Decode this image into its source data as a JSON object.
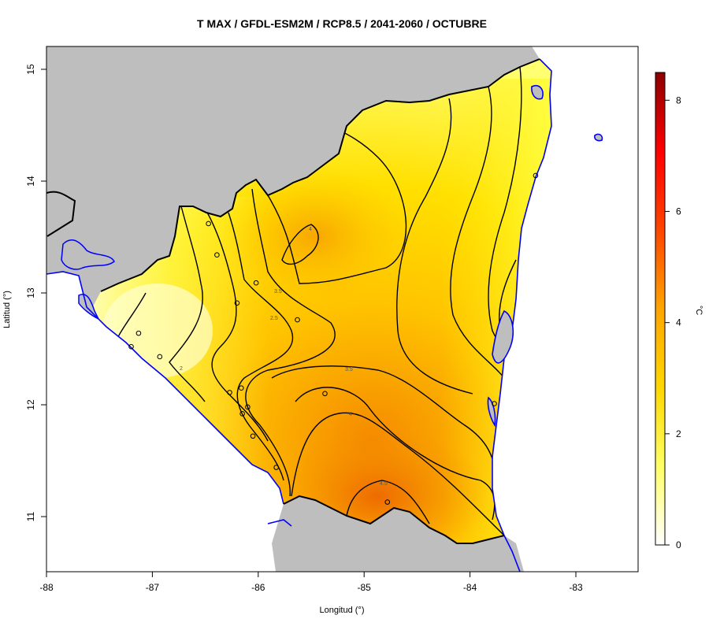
{
  "title": "T MAX / GFDL-ESM2M / RCP8.5 / 2041-2060 / OCTUBRE",
  "x_axis": {
    "label": "Longitud (°)",
    "ticks": [
      "-88",
      "-87",
      "-86",
      "-85",
      "-84",
      "-83"
    ]
  },
  "y_axis": {
    "label": "Latitud (°)",
    "ticks": [
      "15",
      "14",
      "13",
      "12",
      "11"
    ]
  },
  "colorbar": {
    "unit": "°C",
    "ticks": [
      "0",
      "2",
      "4",
      "6",
      "8"
    ],
    "range": [
      0,
      8.5
    ],
    "colors": [
      "#ffffff",
      "#ffff66",
      "#ffd700",
      "#ffa500",
      "#ff4500",
      "#ff0000",
      "#8b0000"
    ]
  },
  "colors": {
    "land_outside": "#bebebe",
    "water": "#ffffff",
    "coastline": "#0000ff",
    "border": "#000000",
    "low_anomaly": "#ffff99",
    "mid_anomaly": "#ffd000",
    "high_anomaly": "#f08000"
  },
  "contour_labels": [
    "4",
    "3.5",
    "2.5",
    "2",
    "3.5",
    "4",
    "4.5"
  ],
  "chart_data": {
    "type": "heatmap",
    "variable": "T MAX anomaly",
    "unit": "°C",
    "xlim": [
      -88,
      -82.4
    ],
    "ylim": [
      10.5,
      15.2
    ],
    "contour_levels": [
      2,
      2.5,
      3,
      3.5,
      4,
      4.5
    ],
    "hotspots": [
      {
        "lon": -84.8,
        "lat": 11.2,
        "value": 4.6
      },
      {
        "lon": -85.6,
        "lat": 13.4,
        "value": 4.1
      }
    ],
    "stations": [
      {
        "lon": -86.47,
        "lat": 13.62
      },
      {
        "lon": -86.39,
        "lat": 13.34
      },
      {
        "lon": -86.02,
        "lat": 13.09
      },
      {
        "lon": -86.2,
        "lat": 12.91
      },
      {
        "lon": -85.63,
        "lat": 12.76
      },
      {
        "lon": -87.13,
        "lat": 12.64
      },
      {
        "lon": -87.2,
        "lat": 12.52
      },
      {
        "lon": -86.93,
        "lat": 12.43
      },
      {
        "lon": -86.27,
        "lat": 12.11
      },
      {
        "lon": -86.16,
        "lat": 12.15
      },
      {
        "lon": -85.37,
        "lat": 12.1
      },
      {
        "lon": -86.1,
        "lat": 11.98
      },
      {
        "lon": -86.15,
        "lat": 11.92
      },
      {
        "lon": -86.05,
        "lat": 11.72
      },
      {
        "lon": -85.83,
        "lat": 11.44
      },
      {
        "lon": -84.78,
        "lat": 11.13
      },
      {
        "lon": -83.77,
        "lat": 12.01
      },
      {
        "lon": -83.38,
        "lat": 14.05
      }
    ]
  }
}
